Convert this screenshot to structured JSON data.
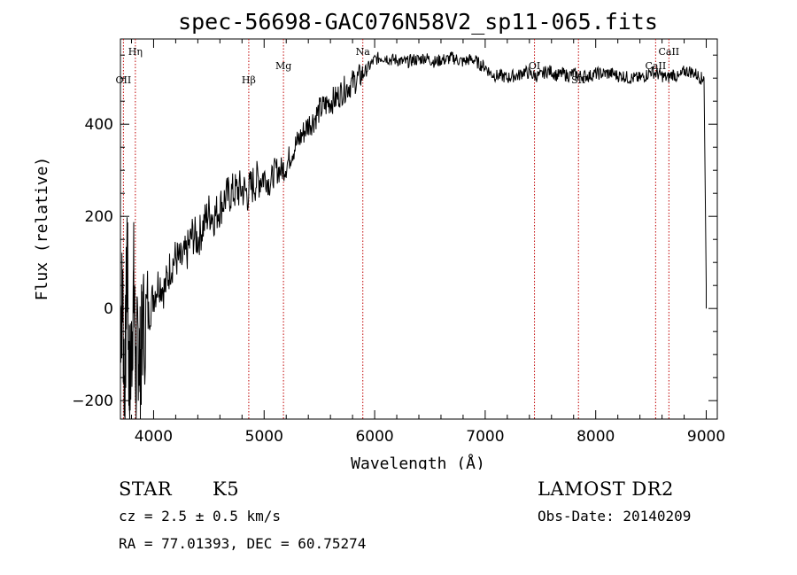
{
  "chart_data": {
    "type": "line",
    "title": "spec-56698-GAC076N58V2_sp11-065.fits",
    "xlabel": "Wavelength (Å)",
    "ylabel": "Flux (relative)",
    "xlim": [
      3700,
      9100
    ],
    "ylim": [
      -240,
      585
    ],
    "x_ticks": [
      4000,
      5000,
      6000,
      7000,
      8000,
      9000
    ],
    "y_ticks": [
      -200,
      0,
      200,
      400
    ],
    "grid": false,
    "series": [
      {
        "x": [
          3700,
          3720,
          3740,
          3760,
          3780,
          3800,
          3820,
          3840,
          3860,
          3880,
          3900,
          3950,
          4000,
          4050,
          4100,
          4150,
          4200,
          4250,
          4300,
          4350,
          4400,
          4450,
          4500,
          4550,
          4600,
          4650,
          4700,
          4750,
          4800,
          4850,
          4900,
          4950,
          5000,
          5050,
          5100,
          5150,
          5200,
          5250,
          5300,
          5350,
          5400,
          5450,
          5500,
          5550,
          5600,
          5650,
          5700,
          5750,
          5800,
          5850,
          5900,
          5950,
          6000,
          6050,
          6100,
          6150,
          6200,
          6250,
          6300,
          6350,
          6400,
          6450,
          6500,
          6550,
          6600,
          6650,
          6700,
          6750,
          6800,
          6850,
          6900,
          6950,
          7000,
          7050,
          7100,
          7150,
          7200,
          7250,
          7300,
          7350,
          7400,
          7450,
          7500,
          7550,
          7600,
          7650,
          7700,
          7750,
          7800,
          7850,
          7900,
          7950,
          8000,
          8050,
          8100,
          8150,
          8200,
          8250,
          8300,
          8350,
          8400,
          8450,
          8500,
          8550,
          8600,
          8650,
          8700,
          8750,
          8800,
          8850,
          8900,
          8950,
          8980,
          9000
        ],
        "y": [
          -20,
          30,
          -210,
          150,
          -180,
          -100,
          60,
          -150,
          -60,
          -130,
          -40,
          -20,
          30,
          60,
          40,
          90,
          110,
          100,
          120,
          160,
          150,
          180,
          210,
          200,
          220,
          240,
          250,
          255,
          260,
          250,
          270,
          280,
          290,
          270,
          300,
          300,
          310,
          340,
          360,
          380,
          400,
          410,
          430,
          440,
          450,
          455,
          470,
          480,
          490,
          500,
          510,
          525,
          540,
          545,
          545,
          540,
          540,
          535,
          535,
          540,
          540,
          545,
          540,
          535,
          540,
          540,
          545,
          540,
          535,
          540,
          540,
          530,
          525,
          510,
          505,
          505,
          500,
          505,
          505,
          515,
          510,
          505,
          505,
          515,
          515,
          505,
          510,
          505,
          510,
          505,
          505,
          505,
          510,
          510,
          510,
          510,
          505,
          505,
          500,
          500,
          500,
          505,
          515,
          510,
          505,
          500,
          510,
          500,
          515,
          515,
          510,
          500,
          500,
          0
        ]
      }
    ],
    "line_markers": [
      {
        "label": "OII",
        "x": 3727,
        "row": "low"
      },
      {
        "label": "Hη",
        "x": 3835,
        "row": "top"
      },
      {
        "label": "Hβ",
        "x": 4861,
        "row": "low"
      },
      {
        "label": "Mg",
        "x": 5175,
        "row": "mid"
      },
      {
        "label": "Na",
        "x": 5893,
        "row": "top"
      },
      {
        "label": "OI",
        "x": 7446,
        "row": "mid"
      },
      {
        "label": "SII",
        "x": 7844,
        "row": "low"
      },
      {
        "label": "CaII",
        "x": 8542,
        "row": "mid"
      },
      {
        "label": "CaII",
        "x": 8662,
        "row": "top"
      }
    ],
    "marker_color": "#c00000"
  },
  "info": {
    "object_class": "STAR",
    "subclass": "K5",
    "survey": "LAMOST DR2",
    "cz": "cz = 2.5 ± 0.5 km/s",
    "obs_date": "Obs-Date: 20140209",
    "coords": "RA =  77.01393, DEC =  60.75274"
  }
}
